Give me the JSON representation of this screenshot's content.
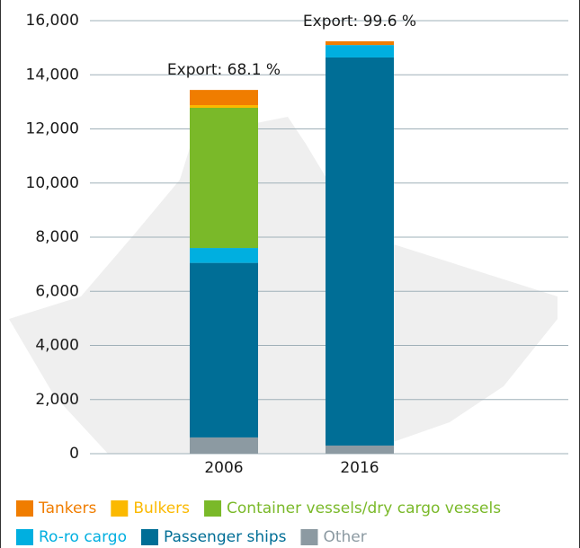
{
  "chart_data": {
    "type": "stacked_bar",
    "categories": [
      "2006",
      "2016"
    ],
    "annotations": [
      "Export: 68.1 %",
      "Export: 99.6 %"
    ],
    "series": [
      {
        "name": "Other",
        "color": "#8c9aa2",
        "values": [
          600,
          300
        ]
      },
      {
        "name": "Passenger ships",
        "color": "#006e96",
        "values": [
          6450,
          14340
        ]
      },
      {
        "name": "Ro-ro cargo",
        "color": "#00afe0",
        "values": [
          550,
          460
        ]
      },
      {
        "name": "Container vessels/dry cargo vessels",
        "color": "#7ab929",
        "values": [
          5180,
          0
        ]
      },
      {
        "name": "Bulkers",
        "color": "#fbb900",
        "values": [
          100,
          0
        ]
      },
      {
        "name": "Tankers",
        "color": "#f07d00",
        "values": [
          560,
          140
        ]
      }
    ],
    "legend_order": [
      5,
      4,
      3,
      2,
      1,
      0
    ],
    "ylim": [
      0,
      16000
    ],
    "yticks": [
      0,
      {
        "value": 2000,
        "label": "2,000"
      },
      {
        "value": 4000,
        "label": "4,000"
      },
      {
        "value": 6000,
        "label": "6,000"
      },
      {
        "value": 8000,
        "label": "8,000"
      },
      {
        "value": 10000,
        "label": "10,000"
      },
      {
        "value": 12000,
        "label": "12,000"
      },
      {
        "value": 14000,
        "label": "14,000"
      },
      {
        "value": 16000,
        "label": "16,000"
      }
    ],
    "grid": true
  }
}
